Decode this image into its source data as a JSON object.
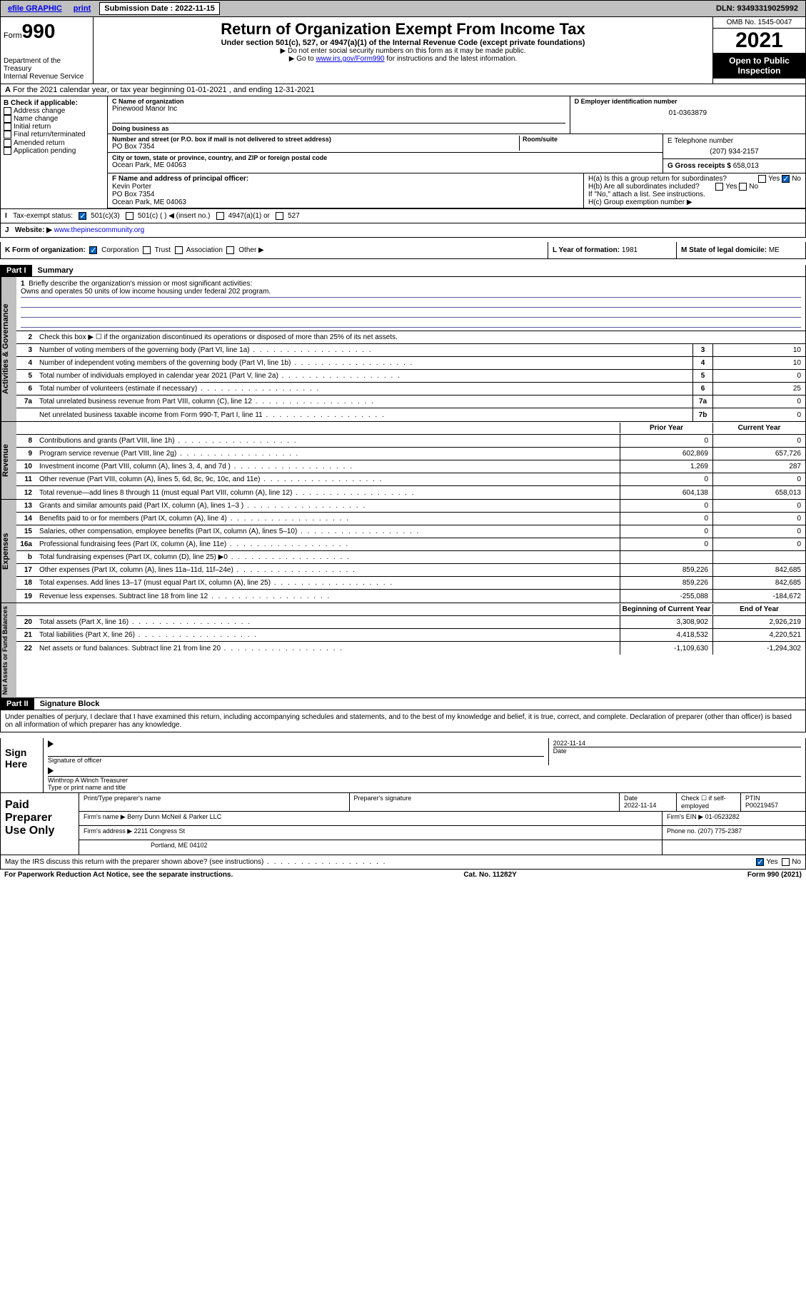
{
  "topbar": {
    "efile": "efile GRAPHIC",
    "print": "print",
    "submission_label": "Submission Date : 2022-11-15",
    "dln": "DLN: 93493319025992"
  },
  "header": {
    "form_prefix": "Form",
    "form_num": "990",
    "dept": "Department of the Treasury",
    "irs": "Internal Revenue Service",
    "title": "Return of Organization Exempt From Income Tax",
    "subtitle": "Under section 501(c), 527, or 4947(a)(1) of the Internal Revenue Code (except private foundations)",
    "note1": "▶ Do not enter social security numbers on this form as it may be made public.",
    "note2_pre": "▶ Go to ",
    "note2_link": "www.irs.gov/Form990",
    "note2_post": " for instructions and the latest information.",
    "omb": "OMB No. 1545-0047",
    "year": "2021",
    "open": "Open to Public Inspection"
  },
  "row_a": "For the 2021 calendar year, or tax year beginning 01-01-2021  , and ending 12-31-2021",
  "sec_b": {
    "label": "B Check if applicable:",
    "items": [
      "Address change",
      "Name change",
      "Initial return",
      "Final return/terminated",
      "Amended return",
      "Application pending"
    ]
  },
  "sec_c": {
    "name_label": "C Name of organization",
    "name": "Pinewood Manor Inc",
    "dba_label": "Doing business as",
    "dba": "",
    "addr_label": "Number and street (or P.O. box if mail is not delivered to street address)",
    "room_label": "Room/suite",
    "addr": "PO Box 7354",
    "city_label": "City or town, state or province, country, and ZIP or foreign postal code",
    "city": "Ocean Park, ME  04063"
  },
  "sec_d": {
    "label": "D Employer identification number",
    "ein": "01-0363879"
  },
  "sec_e": {
    "label": "E Telephone number",
    "phone": "(207) 934-2157"
  },
  "sec_g": {
    "label": "G Gross receipts $",
    "value": "658,013"
  },
  "sec_f": {
    "label": "F Name and address of principal officer:",
    "name": "Kevin Porter",
    "addr1": "PO Box 7354",
    "addr2": "Ocean Park, ME  04063"
  },
  "sec_h": {
    "ha": "H(a)  Is this a group return for subordinates?",
    "hb": "H(b)  Are all subordinates included?",
    "hb_note": "If \"No,\" attach a list. See instructions.",
    "hc": "H(c)  Group exemption number ▶",
    "yes": "Yes",
    "no": "No"
  },
  "sec_i": {
    "label": "Tax-exempt status:",
    "opts": [
      "501(c)(3)",
      "501(c) (  ) ◀ (insert no.)",
      "4947(a)(1) or",
      "527"
    ]
  },
  "sec_j": {
    "label": "Website: ▶",
    "url": "www.thepinescommunity.org"
  },
  "sec_k": {
    "label": "K Form of organization:",
    "opts": [
      "Corporation",
      "Trust",
      "Association",
      "Other ▶"
    ]
  },
  "sec_l": {
    "label": "L Year of formation:",
    "value": "1981"
  },
  "sec_m": {
    "label": "M State of legal domicile:",
    "value": "ME"
  },
  "part1": {
    "header": "Part I",
    "title": "Summary",
    "q1": "Briefly describe the organization's mission or most significant activities:",
    "mission": "Owns and operates 50 units of low income housing under federal 202 program.",
    "q2": "Check this box ▶ ☐  if the organization discontinued its operations or disposed of more than 25% of its net assets.",
    "lines_single": [
      {
        "n": "3",
        "t": "Number of voting members of the governing body (Part VI, line 1a)",
        "b": "3",
        "v": "10"
      },
      {
        "n": "4",
        "t": "Number of independent voting members of the governing body (Part VI, line 1b)",
        "b": "4",
        "v": "10"
      },
      {
        "n": "5",
        "t": "Total number of individuals employed in calendar year 2021 (Part V, line 2a)",
        "b": "5",
        "v": "0"
      },
      {
        "n": "6",
        "t": "Total number of volunteers (estimate if necessary)",
        "b": "6",
        "v": "25"
      },
      {
        "n": "7a",
        "t": "Total unrelated business revenue from Part VIII, column (C), line 12",
        "b": "7a",
        "v": "0"
      },
      {
        "n": "",
        "t": "Net unrelated business taxable income from Form 990-T, Part I, line 11",
        "b": "7b",
        "v": "0"
      }
    ],
    "col_headers": {
      "prior": "Prior Year",
      "current": "Current Year"
    },
    "revenue": [
      {
        "n": "8",
        "t": "Contributions and grants (Part VIII, line 1h)",
        "p": "0",
        "c": "0"
      },
      {
        "n": "9",
        "t": "Program service revenue (Part VIII, line 2g)",
        "p": "602,869",
        "c": "657,726"
      },
      {
        "n": "10",
        "t": "Investment income (Part VIII, column (A), lines 3, 4, and 7d )",
        "p": "1,269",
        "c": "287"
      },
      {
        "n": "11",
        "t": "Other revenue (Part VIII, column (A), lines 5, 6d, 8c, 9c, 10c, and 11e)",
        "p": "0",
        "c": "0"
      },
      {
        "n": "12",
        "t": "Total revenue—add lines 8 through 11 (must equal Part VIII, column (A), line 12)",
        "p": "604,138",
        "c": "658,013"
      }
    ],
    "expenses": [
      {
        "n": "13",
        "t": "Grants and similar amounts paid (Part IX, column (A), lines 1–3 )",
        "p": "0",
        "c": "0"
      },
      {
        "n": "14",
        "t": "Benefits paid to or for members (Part IX, column (A), line 4)",
        "p": "0",
        "c": "0"
      },
      {
        "n": "15",
        "t": "Salaries, other compensation, employee benefits (Part IX, column (A), lines 5–10)",
        "p": "0",
        "c": "0"
      },
      {
        "n": "16a",
        "t": "Professional fundraising fees (Part IX, column (A), line 11e)",
        "p": "0",
        "c": "0"
      },
      {
        "n": "b",
        "t": "Total fundraising expenses (Part IX, column (D), line 25) ▶0",
        "p": "",
        "c": "",
        "shade": true
      },
      {
        "n": "17",
        "t": "Other expenses (Part IX, column (A), lines 11a–11d, 11f–24e)",
        "p": "859,226",
        "c": "842,685"
      },
      {
        "n": "18",
        "t": "Total expenses. Add lines 13–17 (must equal Part IX, column (A), line 25)",
        "p": "859,226",
        "c": "842,685"
      },
      {
        "n": "19",
        "t": "Revenue less expenses. Subtract line 18 from line 12",
        "p": "-255,088",
        "c": "-184,672"
      }
    ],
    "net_headers": {
      "begin": "Beginning of Current Year",
      "end": "End of Year"
    },
    "net": [
      {
        "n": "20",
        "t": "Total assets (Part X, line 16)",
        "p": "3,308,902",
        "c": "2,926,219"
      },
      {
        "n": "21",
        "t": "Total liabilities (Part X, line 26)",
        "p": "4,418,532",
        "c": "4,220,521"
      },
      {
        "n": "22",
        "t": "Net assets or fund balances. Subtract line 21 from line 20",
        "p": "-1,109,630",
        "c": "-1,294,302"
      }
    ],
    "side_labels": {
      "ag": "Activities & Governance",
      "rev": "Revenue",
      "exp": "Expenses",
      "net": "Net Assets or Fund Balances"
    }
  },
  "part2": {
    "header": "Part II",
    "title": "Signature Block",
    "intro": "Under penalties of perjury, I declare that I have examined this return, including accompanying schedules and statements, and to the best of my knowledge and belief, it is true, correct, and complete. Declaration of preparer (other than officer) is based on all information of which preparer has any knowledge."
  },
  "sign": {
    "label": "Sign Here",
    "sig_officer": "Signature of officer",
    "date": "Date",
    "date_val": "2022-11-14",
    "name": "Winthrop A Winch  Treasurer",
    "name_label": "Type or print name and title"
  },
  "paid": {
    "label": "Paid Preparer Use Only",
    "h1": "Print/Type preparer's name",
    "h2": "Preparer's signature",
    "h3": "Date",
    "h3_val": "2022-11-14",
    "h4": "Check ☐ if self-employed",
    "h5": "PTIN",
    "ptin": "P00219457",
    "firm_label": "Firm's name    ▶",
    "firm": "Berry Dunn McNeil & Parker LLC",
    "ein_label": "Firm's EIN ▶",
    "ein": "01-0523282",
    "addr_label": "Firm's address ▶",
    "addr1": "2211 Congress St",
    "addr2": "Portland, ME  04102",
    "phone_label": "Phone no.",
    "phone": "(207) 775-2387"
  },
  "may": {
    "text": "May the IRS discuss this return with the preparer shown above? (see instructions)",
    "yes": "Yes",
    "no": "No"
  },
  "footer": {
    "left": "For Paperwork Reduction Act Notice, see the separate instructions.",
    "mid": "Cat. No. 11282Y",
    "right": "Form 990 (2021)"
  }
}
